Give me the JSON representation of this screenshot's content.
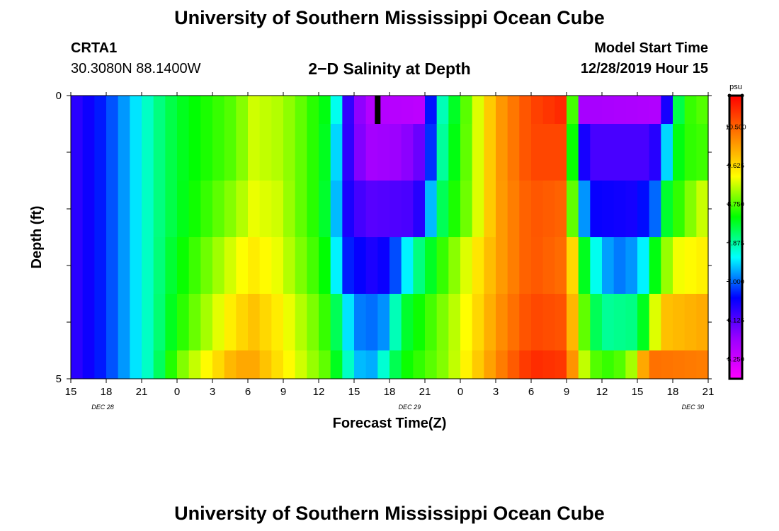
{
  "page": {
    "title": "University of Southern Mississippi Ocean Cube",
    "station_id": "CRTA1",
    "coordinates": "30.3080N 88.1400W",
    "plot_title": "2−D Salinity at Depth",
    "model_start_label": "Model Start Time",
    "model_start_value": "12/28/2019 Hour 15",
    "footer_title": "University of Southern Mississippi Ocean Cube"
  },
  "chart_data": {
    "type": "heatmap",
    "title": "2−D Salinity at Depth",
    "xlabel": "Forecast Time(Z)",
    "ylabel": "Depth (ft)",
    "ylim": [
      0,
      5
    ],
    "y_tick_labels": [
      "0",
      "5"
    ],
    "x_tick_labels": [
      "15",
      "18",
      "21",
      "0",
      "3",
      "6",
      "9",
      "12",
      "15",
      "18",
      "21",
      "0",
      "3",
      "6",
      "9",
      "12",
      "15",
      "18",
      "21"
    ],
    "date_labels": [
      "DEC 28",
      "DEC 29",
      "DEC 30"
    ],
    "colorbar": {
      "unit": "psu",
      "range": [
        4.8,
        11.2
      ],
      "tick_labels": [
        "5.250",
        "6.125",
        "7.000",
        "7.875",
        "8.750",
        "9.625",
        "10.500"
      ],
      "color_stops": [
        "#ff00ff",
        "#9a00ff",
        "#0000ff",
        "#00ffff",
        "#00ff00",
        "#ffff00",
        "#ff8000",
        "#ff0000"
      ]
    },
    "x_hours_from_start": [
      0,
      54
    ],
    "depth_rows": [
      {
        "depth_ft": "0-0.5",
        "salinity_by_time": [
          [
            0,
            6.3
          ],
          [
            3,
            6.8
          ],
          [
            5,
            7.3
          ],
          [
            7,
            7.9
          ],
          [
            9,
            8.3
          ],
          [
            14,
            8.8
          ],
          [
            15.5,
            9.2
          ],
          [
            17.5,
            9.1
          ],
          [
            19,
            8.9
          ],
          [
            21,
            8.5
          ],
          [
            22,
            8.3
          ],
          [
            22.5,
            7.6
          ],
          [
            23,
            6.6
          ],
          [
            25,
            5.5
          ],
          [
            30,
            5.4
          ],
          [
            30,
            5.5
          ],
          [
            30,
            5.7
          ],
          [
            30,
            6.2
          ],
          [
            30.5,
            6.7
          ],
          [
            31,
            7.5
          ],
          [
            32,
            8.1
          ],
          [
            34,
            9.0
          ],
          [
            36,
            10.0
          ],
          [
            39,
            10.7
          ],
          [
            41.5,
            10.9
          ],
          [
            42.2,
            10.1
          ],
          [
            42.8,
            7.3
          ],
          [
            43.5,
            5.6
          ],
          [
            50,
            5.5
          ],
          [
            50.5,
            6.5
          ],
          [
            51,
            7.8
          ],
          [
            52,
            8.6
          ],
          [
            54,
            8.8
          ]
        ]
      },
      {
        "depth_ft": "0.5-1.5",
        "salinity_by_time": [
          [
            0,
            6.3
          ],
          [
            3,
            6.8
          ],
          [
            5,
            7.3
          ],
          [
            7,
            7.9
          ],
          [
            9,
            8.3
          ],
          [
            14,
            8.8
          ],
          [
            15.5,
            9.2
          ],
          [
            17.5,
            9.1
          ],
          [
            19,
            8.9
          ],
          [
            21,
            8.5
          ],
          [
            22,
            8.2
          ],
          [
            22.5,
            7.4
          ],
          [
            23,
            6.6
          ],
          [
            25,
            5.6
          ],
          [
            28,
            5.7
          ],
          [
            30,
            6.1
          ],
          [
            30.5,
            6.8
          ],
          [
            31,
            7.6
          ],
          [
            32,
            8.2
          ],
          [
            34,
            9.0
          ],
          [
            36,
            10.0
          ],
          [
            39,
            10.7
          ],
          [
            41.5,
            10.7
          ],
          [
            42.2,
            9.5
          ],
          [
            43,
            6.8
          ],
          [
            44,
            6.2
          ],
          [
            49,
            6.2
          ],
          [
            50,
            6.6
          ],
          [
            51,
            8.2
          ],
          [
            52,
            8.6
          ],
          [
            54,
            8.7
          ]
        ]
      },
      {
        "depth_ft": "1.5-2.5",
        "salinity_by_time": [
          [
            0,
            6.3
          ],
          [
            3,
            6.8
          ],
          [
            5,
            7.3
          ],
          [
            7,
            7.9
          ],
          [
            9,
            8.3
          ],
          [
            14,
            9.0
          ],
          [
            15.5,
            9.3
          ],
          [
            17.5,
            9.2
          ],
          [
            19,
            8.9
          ],
          [
            21,
            8.5
          ],
          [
            22,
            8.1
          ],
          [
            22.5,
            7.3
          ],
          [
            23,
            6.6
          ],
          [
            25,
            6.1
          ],
          [
            29,
            6.2
          ],
          [
            30,
            6.6
          ],
          [
            30.5,
            7.3
          ],
          [
            31,
            7.9
          ],
          [
            32,
            8.4
          ],
          [
            34,
            9.0
          ],
          [
            36,
            10.0
          ],
          [
            39,
            10.6
          ],
          [
            41.5,
            10.5
          ],
          [
            42.5,
            8.8
          ],
          [
            43.2,
            7.5
          ],
          [
            44,
            6.6
          ],
          [
            48,
            6.5
          ],
          [
            49.5,
            7.0
          ],
          [
            50.5,
            8.3
          ],
          [
            52,
            8.8
          ],
          [
            54,
            9.3
          ]
        ]
      },
      {
        "depth_ft": "2.5-3.5",
        "salinity_by_time": [
          [
            0,
            6.3
          ],
          [
            3,
            6.8
          ],
          [
            5,
            7.3
          ],
          [
            7,
            7.9
          ],
          [
            9,
            8.4
          ],
          [
            14,
            9.3
          ],
          [
            15.5,
            9.5
          ],
          [
            17.5,
            9.3
          ],
          [
            19,
            9.0
          ],
          [
            21,
            8.6
          ],
          [
            22,
            8.3
          ],
          [
            22.5,
            7.5
          ],
          [
            23,
            6.8
          ],
          [
            26,
            6.4
          ],
          [
            27.5,
            6.9
          ],
          [
            28.5,
            7.5
          ],
          [
            29.5,
            8.0
          ],
          [
            31,
            8.5
          ],
          [
            33,
            9.1
          ],
          [
            36,
            10.0
          ],
          [
            39,
            10.6
          ],
          [
            42,
            10.4
          ],
          [
            43,
            8.9
          ],
          [
            44,
            7.8
          ],
          [
            45.5,
            7.2
          ],
          [
            47,
            7.0
          ],
          [
            48.5,
            7.5
          ],
          [
            49.5,
            8.4
          ],
          [
            51,
            9.3
          ],
          [
            54,
            9.5
          ]
        ]
      },
      {
        "depth_ft": "3.5-4.5",
        "salinity_by_time": [
          [
            0,
            6.3
          ],
          [
            3,
            6.8
          ],
          [
            5,
            7.3
          ],
          [
            7,
            7.9
          ],
          [
            9,
            8.5
          ],
          [
            14,
            9.6
          ],
          [
            15.5,
            9.8
          ],
          [
            17.5,
            9.5
          ],
          [
            19,
            9.2
          ],
          [
            21,
            8.8
          ],
          [
            22,
            8.5
          ],
          [
            23,
            7.8
          ],
          [
            24,
            7.1
          ],
          [
            26,
            7.0
          ],
          [
            27,
            7.3
          ],
          [
            27.5,
            7.8
          ],
          [
            28.5,
            8.3
          ],
          [
            30,
            8.6
          ],
          [
            32,
            9.0
          ],
          [
            34,
            9.5
          ],
          [
            36,
            10.1
          ],
          [
            39,
            10.7
          ],
          [
            42,
            10.6
          ],
          [
            43,
            9.2
          ],
          [
            44,
            8.4
          ],
          [
            45,
            7.9
          ],
          [
            48,
            8.0
          ],
          [
            49,
            8.7
          ],
          [
            50,
            9.8
          ],
          [
            54,
            10.0
          ]
        ]
      },
      {
        "depth_ft": "4.5-5",
        "salinity_by_time": [
          [
            0,
            6.3
          ],
          [
            3,
            6.8
          ],
          [
            5,
            7.3
          ],
          [
            7,
            7.9
          ],
          [
            9,
            8.8
          ],
          [
            14,
            10.0
          ],
          [
            15.5,
            10.0
          ],
          [
            17.5,
            9.6
          ],
          [
            19,
            9.3
          ],
          [
            21,
            8.9
          ],
          [
            22,
            8.7
          ],
          [
            23,
            8.0
          ],
          [
            24,
            7.5
          ],
          [
            25,
            7.1
          ],
          [
            26,
            7.4
          ],
          [
            27,
            8.0
          ],
          [
            28.5,
            8.5
          ],
          [
            30,
            8.7
          ],
          [
            32,
            9.0
          ],
          [
            34,
            9.6
          ],
          [
            36,
            10.2
          ],
          [
            39,
            10.9
          ],
          [
            42,
            10.8
          ],
          [
            43,
            9.5
          ],
          [
            44,
            8.8
          ],
          [
            46,
            8.6
          ],
          [
            48,
            9.2
          ],
          [
            48.5,
            10.0
          ],
          [
            49,
            10.4
          ],
          [
            54,
            10.3
          ]
        ]
      }
    ],
    "current_time_marker_hour": 26
  }
}
